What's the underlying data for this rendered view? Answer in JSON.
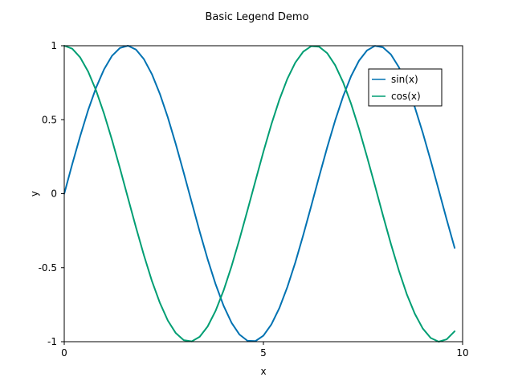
{
  "chart_data": {
    "type": "line",
    "title": "Basic Legend Demo",
    "xlabel": "x",
    "ylabel": "y",
    "xlim": [
      0,
      10
    ],
    "ylim": [
      -1,
      1
    ],
    "grid": false,
    "legend_position": "top-right",
    "x_ticks": [
      {
        "value": 0,
        "label": "0"
      },
      {
        "value": 5,
        "label": "5"
      },
      {
        "value": 10,
        "label": "10"
      }
    ],
    "y_ticks": [
      {
        "value": -1,
        "label": "-1"
      },
      {
        "value": -0.5,
        "label": "-0.5"
      },
      {
        "value": 0,
        "label": "0"
      },
      {
        "value": 0.5,
        "label": "0.5"
      },
      {
        "value": 1,
        "label": "1"
      }
    ],
    "x": [
      0.0,
      0.2,
      0.4,
      0.6,
      0.8,
      1.0,
      1.2,
      1.4,
      1.6,
      1.8,
      2.0,
      2.2,
      2.4,
      2.6,
      2.8,
      3.0,
      3.2,
      3.4,
      3.6,
      3.8,
      4.0,
      4.2,
      4.4,
      4.6,
      4.8,
      5.0,
      5.2,
      5.4,
      5.6,
      5.8,
      6.0,
      6.2,
      6.4,
      6.6,
      6.8,
      7.0,
      7.2,
      7.4,
      7.6,
      7.8,
      8.0,
      8.2,
      8.4,
      8.6,
      8.8,
      9.0,
      9.2,
      9.4,
      9.6,
      9.8
    ],
    "series": [
      {
        "name": "sin(x)",
        "color": "#0072b2",
        "values": [
          0.0,
          0.199,
          0.389,
          0.565,
          0.717,
          0.841,
          0.932,
          0.985,
          1.0,
          0.974,
          0.909,
          0.808,
          0.675,
          0.516,
          0.335,
          0.141,
          -0.058,
          -0.256,
          -0.443,
          -0.612,
          -0.757,
          -0.872,
          -0.952,
          -0.994,
          -0.996,
          -0.959,
          -0.883,
          -0.773,
          -0.631,
          -0.465,
          -0.279,
          -0.083,
          0.117,
          0.312,
          0.494,
          0.657,
          0.794,
          0.899,
          0.968,
          0.999,
          0.989,
          0.941,
          0.855,
          0.734,
          0.585,
          0.412,
          0.223,
          0.025,
          -0.174,
          -0.366
        ]
      },
      {
        "name": "cos(x)",
        "color": "#009e73",
        "values": [
          1.0,
          0.98,
          0.921,
          0.825,
          0.697,
          0.54,
          0.362,
          0.17,
          -0.029,
          -0.227,
          -0.416,
          -0.589,
          -0.737,
          -0.857,
          -0.942,
          -0.99,
          -0.998,
          -0.967,
          -0.897,
          -0.791,
          -0.654,
          -0.49,
          -0.307,
          -0.112,
          0.087,
          0.284,
          0.469,
          0.635,
          0.776,
          0.886,
          0.96,
          0.997,
          0.993,
          0.95,
          0.869,
          0.754,
          0.608,
          0.438,
          0.25,
          0.054,
          -0.146,
          -0.339,
          -0.519,
          -0.68,
          -0.811,
          -0.911,
          -0.975,
          -1.0,
          -0.984,
          -0.93
        ]
      }
    ]
  }
}
